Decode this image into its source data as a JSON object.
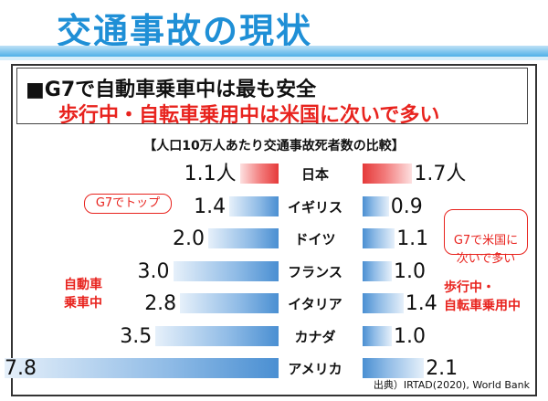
{
  "page_title": "交通事故の現状",
  "headline": "■G7で自動車乗車中は最も安全",
  "subheadline": "歩行中・自転車乗用中は米国に次いで多い",
  "comparison_label": "【人口10万人あたり交通事故死者数の比較】",
  "callouts": {
    "left_top": "G7でトップ",
    "right_top": "G7で米国に\n次いで多い"
  },
  "side_labels": {
    "left": "自動車\n乗車中",
    "right": "歩行中・\n自転車乗用中"
  },
  "source": "出典）IRTAD(2020), World Bank",
  "colors": {
    "title": "#1f8fd6",
    "accent_red": "#e8231e",
    "bar_blue": "#4a8fd2",
    "bar_red": "#e53a3a"
  },
  "chart_data": {
    "type": "bar",
    "categories": [
      "日本",
      "イギリス",
      "ドイツ",
      "フランス",
      "イタリア",
      "カナダ",
      "アメリカ"
    ],
    "series": [
      {
        "name": "自動車乗車中",
        "values": [
          1.1,
          1.4,
          2.0,
          3.0,
          2.8,
          3.5,
          7.8
        ],
        "labels": [
          "1.1人",
          "1.4",
          "2.0",
          "3.0",
          "2.8",
          "3.5",
          "7.8"
        ]
      },
      {
        "name": "歩行中・自転車乗用中",
        "values": [
          1.7,
          0.9,
          1.1,
          1.0,
          1.4,
          1.0,
          2.1
        ],
        "labels": [
          "1.7人",
          "0.9",
          "1.1",
          "1.0",
          "1.4",
          "1.0",
          "2.1"
        ]
      }
    ],
    "title": "【人口10万人あたり交通事故死者数の比較】"
  }
}
